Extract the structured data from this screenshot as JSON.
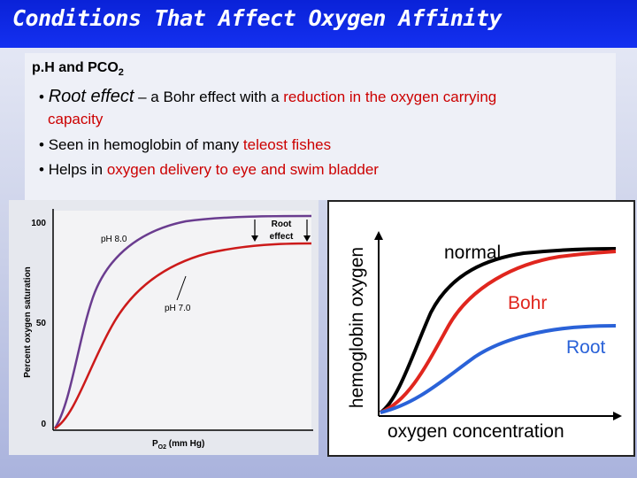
{
  "slide": {
    "title": "Conditions That Affect Oxygen Affinity",
    "subtitle_main": "p.H and PCO",
    "subtitle_sub": "2",
    "bullets": {
      "b1_term": "Root effect",
      "b1_dash": " – a Bohr effect with a ",
      "b1_red": "reduction in the oxygen carrying",
      "b1_cont": "capacity",
      "b2_pre": "Seen in hemoglobin of many ",
      "b2_red": "teleost fishes",
      "b3_pre": "Helps in ",
      "b3_red": "oxygen delivery to eye and swim bladder"
    }
  },
  "left_diagram": {
    "ylabel": "Percent oxygen saturation",
    "xlabel_main": "P",
    "xlabel_sub": "O2",
    "xlabel_unit": " (mm Hg)",
    "yticks": [
      "100",
      "50",
      "0"
    ],
    "curve_high_label": "pH 8.0",
    "curve_low_label": "pH 7.0",
    "root_label_1": "Root",
    "root_label_2": "effect",
    "colors": {
      "high": "#6a3c8f",
      "low": "#cc1a1a",
      "frame": "#000000"
    }
  },
  "right_diagram": {
    "ylabel": "hemoglobin oxygen",
    "xlabel": "oxygen concentration",
    "labels": {
      "normal": "normal",
      "bohr": "Bohr",
      "root": "Root"
    },
    "colors": {
      "normal": "#000000",
      "bohr": "#e0261e",
      "root": "#2a62d8"
    }
  }
}
